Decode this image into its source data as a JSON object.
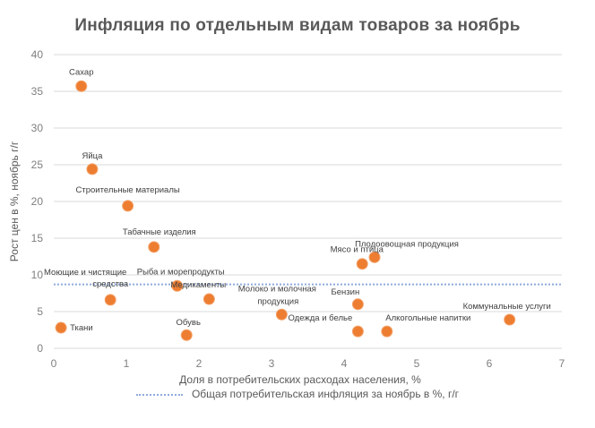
{
  "chart_data": {
    "type": "scatter",
    "title": "Инфляция по отдельным видам товаров за ноябрь",
    "xlabel": "Доля в потребительских расходах населения, %",
    "ylabel": "Рост цен в %, ноябрь г/г",
    "xlim": [
      0,
      7
    ],
    "ylim": [
      0,
      40
    ],
    "x_ticks": [
      "0",
      "1",
      "2",
      "3",
      "4",
      "5",
      "6",
      "7"
    ],
    "y_ticks": [
      "0",
      "5",
      "10",
      "15",
      "20",
      "25",
      "30",
      "35",
      "40"
    ],
    "grid": "horizontal",
    "marker_color": "#ed7d31",
    "points": [
      {
        "label": "Сахар",
        "x": 0.38,
        "y": 35.7
      },
      {
        "label": "Яйца",
        "x": 0.53,
        "y": 24.4
      },
      {
        "label": "Строительные материалы",
        "x": 1.02,
        "y": 19.4
      },
      {
        "label": "Табачные изделия",
        "x": 1.38,
        "y": 13.8
      },
      {
        "label": "Рыба и морепродукты",
        "x": 1.7,
        "y": 8.5
      },
      {
        "label": "Моющие и чистящие средства",
        "x": 0.78,
        "y": 6.6
      },
      {
        "label": "Медикаменты",
        "x": 2.14,
        "y": 6.7
      },
      {
        "label": "Ткани",
        "x": 0.1,
        "y": 2.8
      },
      {
        "label": "Обувь",
        "x": 1.83,
        "y": 1.8
      },
      {
        "label": "Молоко и молочная продукция",
        "x": 3.14,
        "y": 4.6
      },
      {
        "label": "Бензин",
        "x": 4.19,
        "y": 6.0
      },
      {
        "label": "Мясо и птица",
        "x": 4.25,
        "y": 11.5
      },
      {
        "label": "Плодоовощная продукция",
        "x": 4.42,
        "y": 12.4
      },
      {
        "label": "Одежда и белье",
        "x": 4.19,
        "y": 2.3
      },
      {
        "label": "Алкогольные напитки",
        "x": 4.59,
        "y": 2.3
      },
      {
        "label": "Коммунальные услуги",
        "x": 6.28,
        "y": 3.9
      }
    ],
    "reference_line": {
      "name": "Общая потребительская инфляция за ноябрь в %, г/г",
      "y": 8.7,
      "color": "#8faadc",
      "style": "dotted"
    },
    "legend": {
      "position": "bottom",
      "entries": [
        "Общая потребительская инфляция за ноябрь в %, г/г"
      ]
    }
  }
}
